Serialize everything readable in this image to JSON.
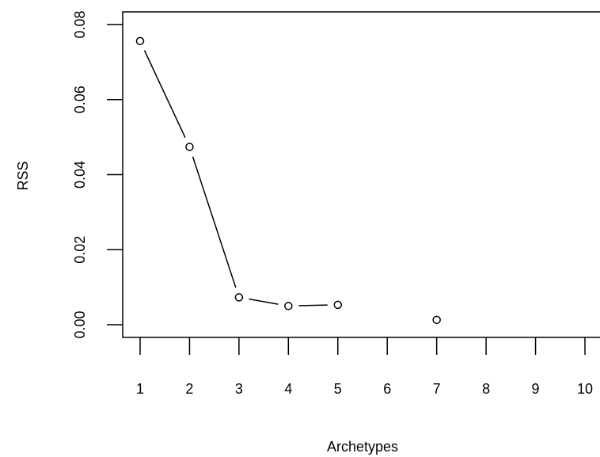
{
  "chart_data": {
    "type": "line",
    "title": "",
    "xlabel": "Archetypes",
    "ylabel": "RSS",
    "x_ticks": [
      "1",
      "2",
      "3",
      "4",
      "5",
      "6",
      "7",
      "8",
      "9",
      "10"
    ],
    "y_ticks": [
      "0.00",
      "0.02",
      "0.04",
      "0.06",
      "0.08"
    ],
    "xlim": [
      1,
      10
    ],
    "ylim": [
      0,
      0.08
    ],
    "grid": false,
    "series": [
      {
        "points": [
          {
            "x": 1,
            "y": 0.0756
          },
          {
            "x": 2,
            "y": 0.0474
          },
          {
            "x": 3,
            "y": 0.0073
          },
          {
            "x": 4,
            "y": 0.005
          },
          {
            "x": 5,
            "y": 0.0053
          },
          {
            "x": 7,
            "y": 0.0013
          }
        ],
        "connected_segments": [
          [
            1,
            2
          ],
          [
            2,
            3
          ],
          [
            3,
            4
          ],
          [
            4,
            5
          ]
        ]
      }
    ]
  }
}
